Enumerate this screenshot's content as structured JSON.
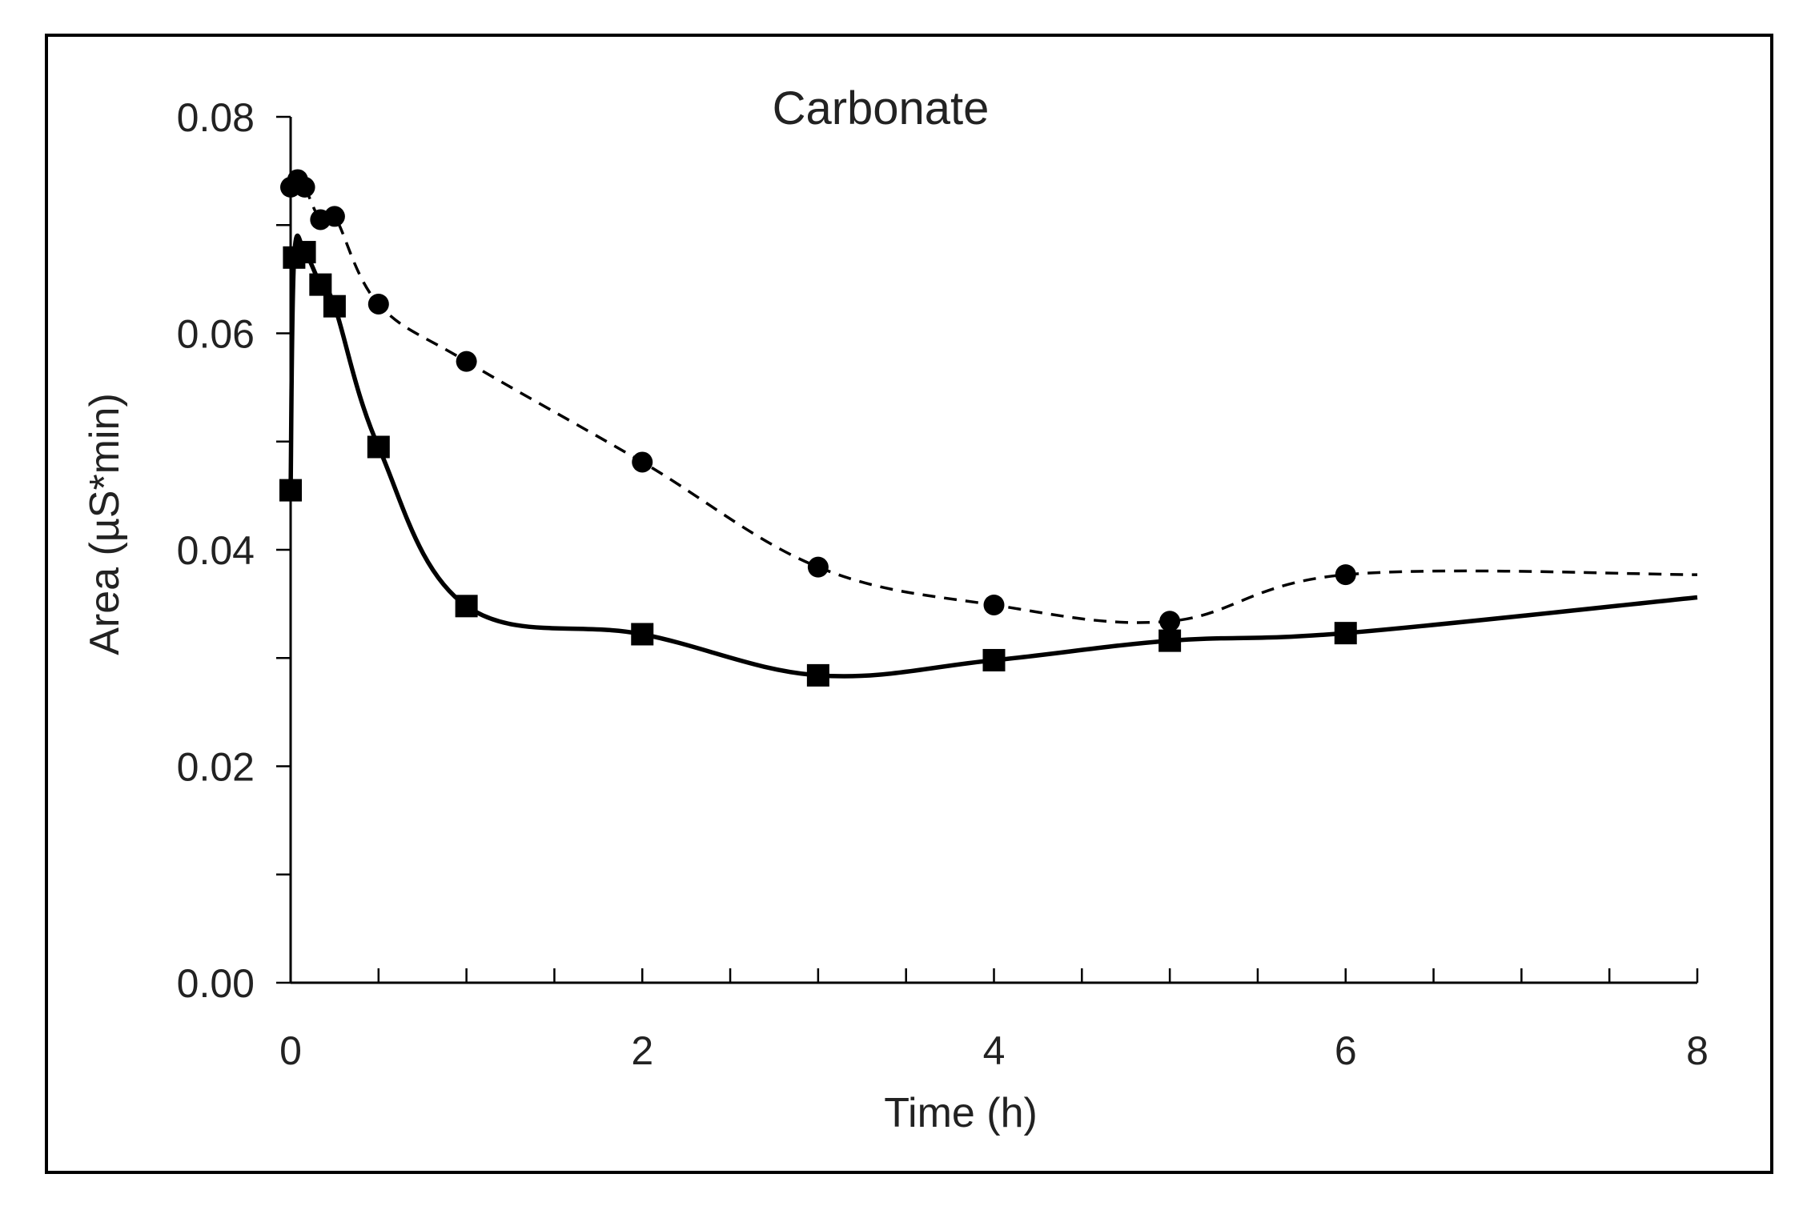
{
  "chart_data": {
    "type": "line",
    "title": "Carbonate",
    "xlabel": "Time (h)",
    "ylabel": "Area (µS*min)",
    "xlim": [
      0,
      8
    ],
    "ylim": [
      0,
      0.08
    ],
    "x_ticks": [
      0,
      2,
      4,
      6,
      8
    ],
    "x_tick_labels": [
      "0",
      "2",
      "4",
      "6",
      "8"
    ],
    "x_minor_step": 0.5,
    "y_ticks": [
      0,
      0.02,
      0.04,
      0.06,
      0.08
    ],
    "y_tick_labels": [
      "0.00",
      "0.02",
      "0.04",
      "0.06",
      "0.08"
    ],
    "y_minor_step": 0.01,
    "legend": "none",
    "grid": false,
    "series": [
      {
        "name": "squares (solid line)",
        "marker": "square",
        "line_style": "solid",
        "x": [
          0,
          0.02,
          0.08,
          0.17,
          0.25,
          0.5,
          1,
          2,
          3,
          4,
          5,
          6
        ],
        "y": [
          0.0455,
          0.067,
          0.0675,
          0.0645,
          0.0625,
          0.0495,
          0.0348,
          0.0322,
          0.0284,
          0.0298,
          0.0316,
          0.0323
        ],
        "line_end": [
          8,
          0.0356
        ]
      },
      {
        "name": "circles (dashed line)",
        "marker": "circle",
        "line_style": "dashed",
        "x": [
          0,
          0.04,
          0.08,
          0.17,
          0.25,
          0.5,
          1,
          2,
          3,
          4,
          5,
          6
        ],
        "y": [
          0.0735,
          0.0742,
          0.0735,
          0.0705,
          0.0708,
          0.0627,
          0.0574,
          0.0481,
          0.0384,
          0.0349,
          0.0334,
          0.0377
        ],
        "line_end": [
          8,
          0.0377
        ]
      }
    ]
  }
}
